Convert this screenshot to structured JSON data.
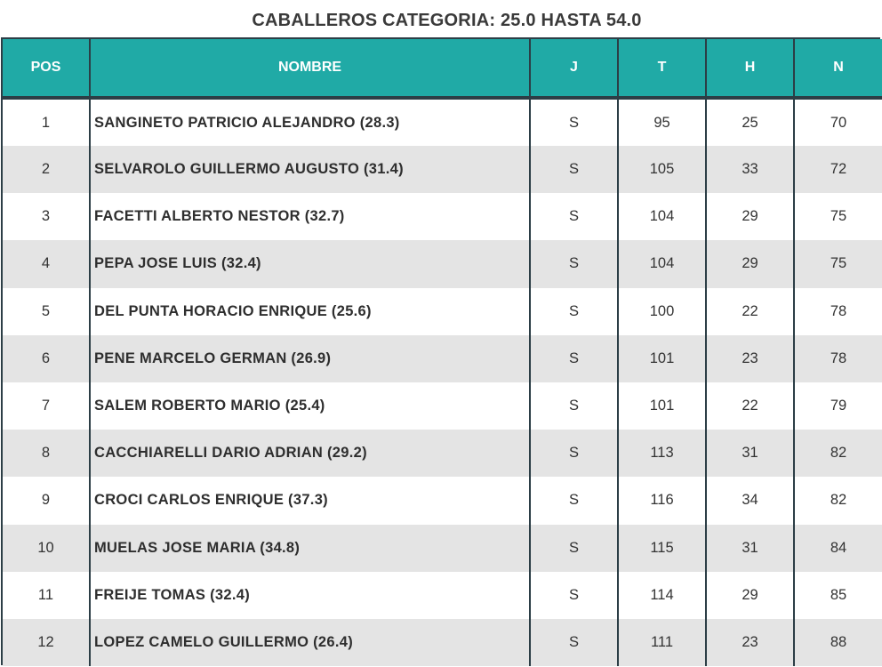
{
  "title": "CABALLEROS CATEGORIA: 25.0 HASTA 54.0",
  "headers": {
    "pos": "POS",
    "nombre": "NOMBRE",
    "j": "J",
    "t": "T",
    "h": "H",
    "n": "N"
  },
  "rows": [
    {
      "pos": "1",
      "nombre": "SANGINETO PATRICIO ALEJANDRO (28.3)",
      "j": "S",
      "t": "95",
      "h": "25",
      "n": "70"
    },
    {
      "pos": "2",
      "nombre": "SELVAROLO GUILLERMO AUGUSTO (31.4)",
      "j": "S",
      "t": "105",
      "h": "33",
      "n": "72"
    },
    {
      "pos": "3",
      "nombre": "FACETTI ALBERTO NESTOR (32.7)",
      "j": "S",
      "t": "104",
      "h": "29",
      "n": "75"
    },
    {
      "pos": "4",
      "nombre": "PEPA JOSE LUIS (32.4)",
      "j": "S",
      "t": "104",
      "h": "29",
      "n": "75"
    },
    {
      "pos": "5",
      "nombre": "DEL PUNTA HORACIO ENRIQUE (25.6)",
      "j": "S",
      "t": "100",
      "h": "22",
      "n": "78"
    },
    {
      "pos": "6",
      "nombre": "PENE MARCELO GERMAN (26.9)",
      "j": "S",
      "t": "101",
      "h": "23",
      "n": "78"
    },
    {
      "pos": "7",
      "nombre": "SALEM ROBERTO MARIO (25.4)",
      "j": "S",
      "t": "101",
      "h": "22",
      "n": "79"
    },
    {
      "pos": "8",
      "nombre": "CACCHIARELLI DARIO ADRIAN (29.2)",
      "j": "S",
      "t": "113",
      "h": "31",
      "n": "82"
    },
    {
      "pos": "9",
      "nombre": "CROCI CARLOS ENRIQUE (37.3)",
      "j": "S",
      "t": "116",
      "h": "34",
      "n": "82"
    },
    {
      "pos": "10",
      "nombre": "MUELAS JOSE MARIA (34.8)",
      "j": "S",
      "t": "115",
      "h": "31",
      "n": "84"
    },
    {
      "pos": "11",
      "nombre": "FREIJE TOMAS (32.4)",
      "j": "S",
      "t": "114",
      "h": "29",
      "n": "85"
    },
    {
      "pos": "12",
      "nombre": "LOPEZ CAMELO GUILLERMO (26.4)",
      "j": "S",
      "t": "111",
      "h": "23",
      "n": "88"
    }
  ],
  "colors": {
    "header_bg": "#20aaa6",
    "border": "#2c3e46",
    "stripe": "#e4e4e4"
  }
}
